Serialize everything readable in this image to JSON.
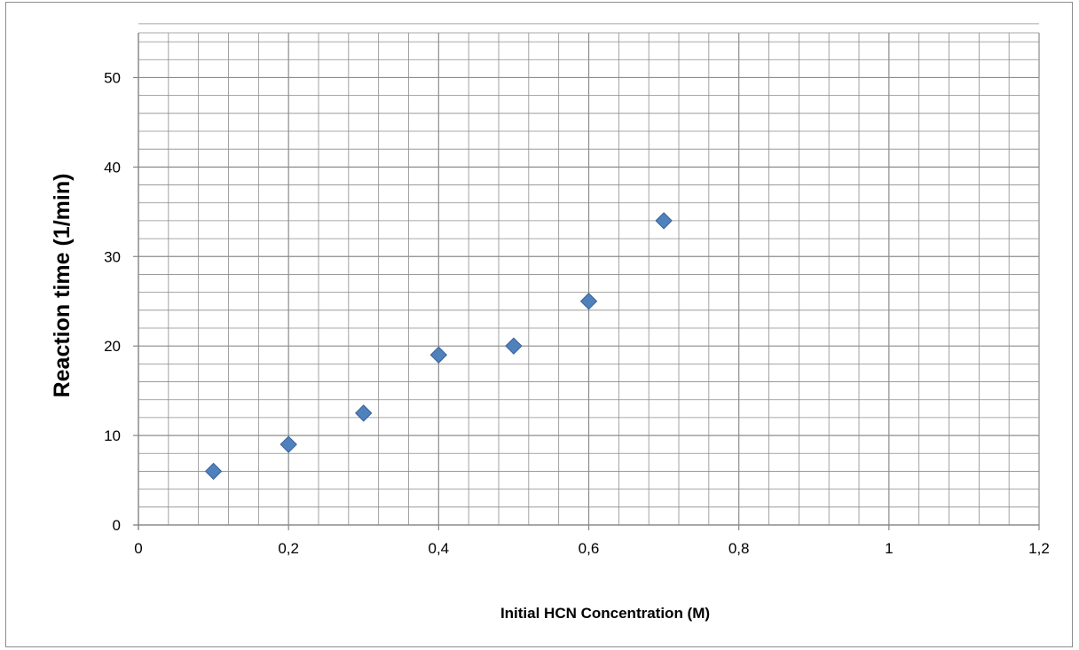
{
  "chart_data": {
    "type": "scatter",
    "title": "",
    "xlabel": "Initial HCN Concentration (M)",
    "ylabel": "Reaction time (1/min)",
    "xlim": [
      0,
      1.2
    ],
    "ylim": [
      0,
      55
    ],
    "x_major_step": 0.2,
    "x_minor_step": 0.04,
    "y_major_step": 10,
    "y_minor_step": 2,
    "x_tick_labels": [
      "0",
      "0,2",
      "0,4",
      "0,6",
      "0,8",
      "1",
      "1,2"
    ],
    "y_tick_labels": [
      "0",
      "10",
      "20",
      "30",
      "40",
      "50"
    ],
    "grid": true,
    "legend": "none",
    "marker": "diamond",
    "marker_color": "#4f81bd",
    "marker_edge_color": "#3a6296",
    "grid_color": "#8c8c8c",
    "series": [
      {
        "x": [
          0.1,
          0.2,
          0.3,
          0.4,
          0.5,
          0.6,
          0.7
        ],
        "y": [
          6,
          9,
          12.5,
          19,
          20,
          25,
          34
        ]
      }
    ]
  }
}
